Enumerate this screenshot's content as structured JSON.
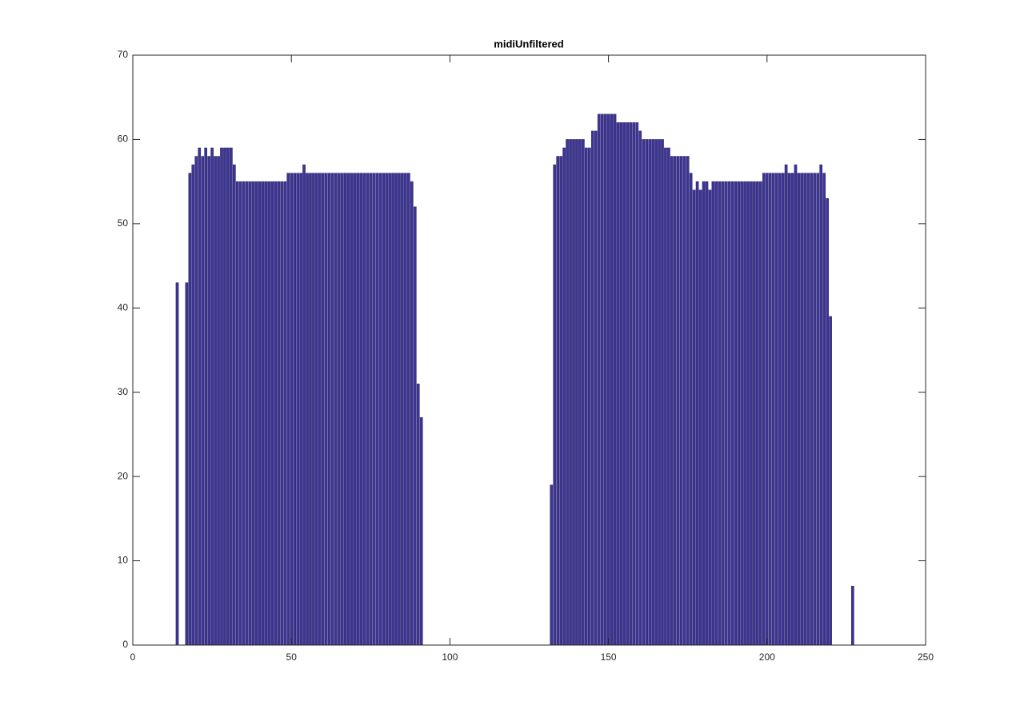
{
  "chart_data": {
    "type": "bar",
    "title": "midiUnfiltered",
    "color": "#3d3591",
    "x": [
      14,
      17,
      18,
      19,
      20,
      21,
      22,
      23,
      24,
      25,
      26,
      27,
      28,
      29,
      30,
      31,
      32,
      33,
      34,
      35,
      36,
      37,
      38,
      39,
      40,
      41,
      42,
      43,
      44,
      45,
      46,
      47,
      48,
      49,
      50,
      51,
      52,
      53,
      54,
      55,
      56,
      57,
      58,
      59,
      60,
      61,
      62,
      63,
      64,
      65,
      66,
      67,
      68,
      69,
      70,
      71,
      72,
      73,
      74,
      75,
      76,
      77,
      78,
      79,
      80,
      81,
      82,
      83,
      84,
      85,
      86,
      87,
      88,
      89,
      90,
      91,
      132,
      133,
      134,
      135,
      136,
      137,
      138,
      139,
      140,
      141,
      142,
      143,
      144,
      145,
      146,
      147,
      148,
      149,
      150,
      151,
      152,
      153,
      154,
      155,
      156,
      157,
      158,
      159,
      160,
      161,
      162,
      163,
      164,
      165,
      166,
      167,
      168,
      169,
      170,
      171,
      172,
      173,
      174,
      175,
      176,
      177,
      178,
      179,
      180,
      181,
      182,
      183,
      184,
      185,
      186,
      187,
      188,
      189,
      190,
      191,
      192,
      193,
      194,
      195,
      196,
      197,
      198,
      199,
      200,
      201,
      202,
      203,
      204,
      205,
      206,
      207,
      208,
      209,
      210,
      211,
      212,
      213,
      214,
      215,
      216,
      217,
      218,
      219,
      220,
      227
    ],
    "values": [
      43,
      43,
      56,
      57,
      58,
      59,
      58,
      59,
      58,
      59,
      58,
      58,
      59,
      59,
      59,
      59,
      57,
      55,
      55,
      55,
      55,
      55,
      55,
      55,
      55,
      55,
      55,
      55,
      55,
      55,
      55,
      55,
      55,
      56,
      56,
      56,
      56,
      56,
      57,
      56,
      56,
      56,
      56,
      56,
      56,
      56,
      56,
      56,
      56,
      56,
      56,
      56,
      56,
      56,
      56,
      56,
      56,
      56,
      56,
      56,
      56,
      56,
      56,
      56,
      56,
      56,
      56,
      56,
      56,
      56,
      56,
      56,
      55,
      52,
      31,
      27,
      19,
      57,
      58,
      58,
      59,
      60,
      60,
      60,
      60,
      60,
      60,
      59,
      59,
      61,
      61,
      63,
      63,
      63,
      63,
      63,
      63,
      62,
      62,
      62,
      62,
      62,
      62,
      62,
      61,
      60,
      60,
      60,
      60,
      60,
      60,
      60,
      59,
      59,
      58,
      58,
      58,
      58,
      58,
      58,
      56,
      54,
      55,
      54,
      55,
      55,
      54,
      55,
      55,
      55,
      55,
      55,
      55,
      55,
      55,
      55,
      55,
      55,
      55,
      55,
      55,
      55,
      55,
      56,
      56,
      56,
      56,
      56,
      56,
      56,
      57,
      56,
      56,
      57,
      56,
      56,
      56,
      56,
      56,
      56,
      56,
      57,
      56,
      53,
      39,
      7
    ],
    "xlim": [
      0,
      250
    ],
    "xticks": [
      0,
      50,
      100,
      150,
      200,
      250
    ],
    "ylim": [
      0,
      70
    ],
    "yticks": [
      0,
      10,
      20,
      30,
      40,
      50,
      60,
      70
    ]
  }
}
